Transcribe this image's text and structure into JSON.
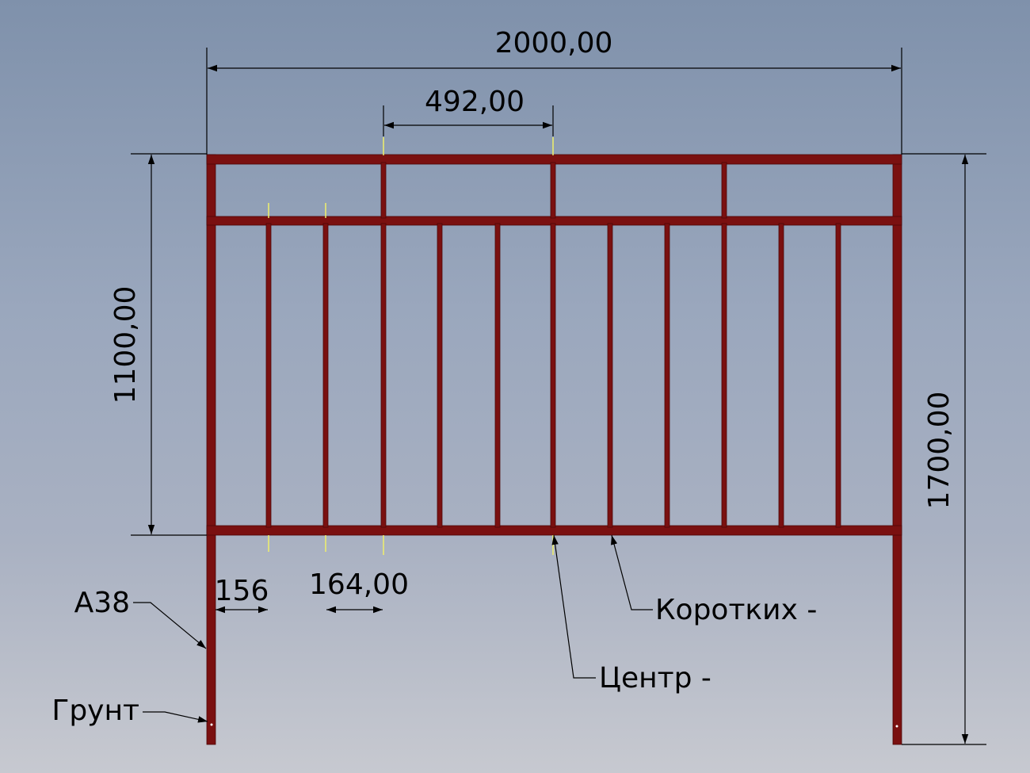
{
  "colors": {
    "frame": "#7a1010",
    "frame_edge": "#4d0808",
    "dimension_line": "#000000",
    "extension_marker": "#f0f06a"
  },
  "dimensions": {
    "overall_width": "2000,00",
    "top_bay_width": "492,00",
    "panel_height": "1100,00",
    "total_height": "1700,00",
    "end_gap": "156",
    "picket_spacing": "164,00"
  },
  "leaders": {
    "post": "А38",
    "ground": "Грунт",
    "short_pickets": "Коротких -",
    "center": "Центр -"
  }
}
